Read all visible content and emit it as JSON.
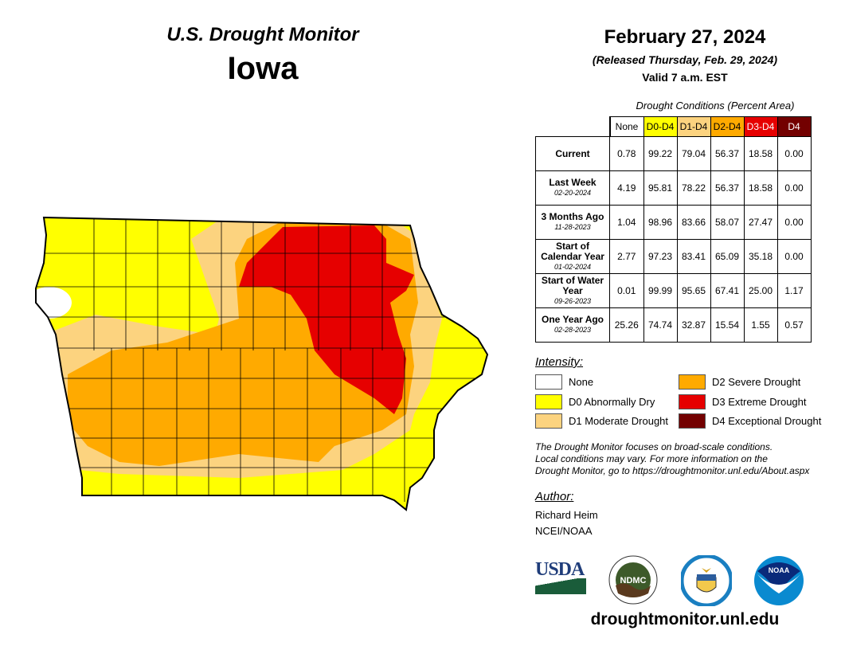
{
  "header": {
    "product": "U.S. Drought Monitor",
    "state": "Iowa",
    "date": "February 27, 2024",
    "released": "(Released Thursday, Feb. 29, 2024)",
    "valid": "Valid 7 a.m. EST"
  },
  "table": {
    "caption": "Drought Conditions (Percent Area)",
    "columns": [
      {
        "label": "None",
        "color": "#ffffff"
      },
      {
        "label": "D0-D4",
        "color": "#ffff00"
      },
      {
        "label": "D1-D4",
        "color": "#fcd37f"
      },
      {
        "label": "D2-D4",
        "color": "#ffaa00"
      },
      {
        "label": "D3-D4",
        "color": "#e60000"
      },
      {
        "label": "D4",
        "color": "#730000"
      }
    ],
    "rows": [
      {
        "label": "Current",
        "date": "",
        "values": [
          "0.78",
          "99.22",
          "79.04",
          "56.37",
          "18.58",
          "0.00"
        ]
      },
      {
        "label": "Last Week",
        "date": "02-20-2024",
        "values": [
          "4.19",
          "95.81",
          "78.22",
          "56.37",
          "18.58",
          "0.00"
        ]
      },
      {
        "label": "3 Months Ago",
        "date": "11-28-2023",
        "values": [
          "1.04",
          "98.96",
          "83.66",
          "58.07",
          "27.47",
          "0.00"
        ]
      },
      {
        "label": "Start of Calendar Year",
        "date": "01-02-2024",
        "values": [
          "2.77",
          "97.23",
          "83.41",
          "65.09",
          "35.18",
          "0.00"
        ]
      },
      {
        "label": "Start of Water Year",
        "date": "09-26-2023",
        "values": [
          "0.01",
          "99.99",
          "95.65",
          "67.41",
          "25.00",
          "1.17"
        ]
      },
      {
        "label": "One Year Ago",
        "date": "02-28-2023",
        "values": [
          "25.26",
          "74.74",
          "32.87",
          "15.54",
          "1.55",
          "0.57"
        ]
      }
    ]
  },
  "legend": {
    "title": "Intensity:",
    "items": [
      {
        "label": "None",
        "color": "#ffffff"
      },
      {
        "label": "D0 Abnormally Dry",
        "color": "#ffff00"
      },
      {
        "label": "D1 Moderate Drought",
        "color": "#fcd37f"
      },
      {
        "label": "D2 Severe Drought",
        "color": "#ffaa00"
      },
      {
        "label": "D3 Extreme Drought",
        "color": "#e60000"
      },
      {
        "label": "D4 Exceptional Drought",
        "color": "#730000"
      }
    ]
  },
  "note": [
    "The Drought Monitor focuses on broad-scale conditions.",
    "Local conditions may vary. For more information on the",
    "Drought Monitor, go to https://droughtmonitor.unl.edu/About.aspx"
  ],
  "author": {
    "title": "Author:",
    "name": "Richard Heim",
    "org": "NCEI/NOAA"
  },
  "logos": {
    "usda": "USDA",
    "ndmc": "NDMC",
    "noaa": "NOAA"
  },
  "url": "droughtmonitor.unl.edu"
}
